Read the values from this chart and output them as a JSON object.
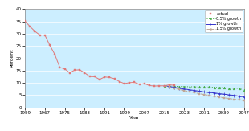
{
  "title": "",
  "ylabel": "Percent",
  "xlabel": "Year",
  "bg_color": "#cceeff",
  "ylim": [
    0,
    40
  ],
  "yticks": [
    0,
    5,
    10,
    15,
    20,
    25,
    30,
    35,
    40
  ],
  "xticks": [
    1959,
    1967,
    1975,
    1983,
    1991,
    1999,
    2007,
    2015,
    2023,
    2031,
    2039,
    2047
  ],
  "actual_years": [
    1959,
    1961,
    1963,
    1965,
    1967,
    1969,
    1971,
    1973,
    1975,
    1977,
    1979,
    1981,
    1983,
    1985,
    1987,
    1989,
    1991,
    1993,
    1995,
    1997,
    1999,
    2001,
    2003,
    2005,
    2007,
    2009,
    2011,
    2013,
    2015,
    2017,
    2019
  ],
  "actual_values": [
    35.2,
    33.0,
    31.0,
    29.5,
    29.5,
    25.3,
    21.6,
    16.3,
    15.7,
    14.1,
    15.2,
    15.3,
    14.1,
    12.6,
    12.5,
    11.4,
    12.4,
    12.2,
    11.7,
    10.5,
    9.7,
    10.1,
    10.2,
    9.4,
    9.7,
    8.9,
    8.7,
    8.8,
    8.8,
    9.2,
    9.0
  ],
  "proj_years": [
    2015,
    2017,
    2019,
    2021,
    2023,
    2025,
    2027,
    2029,
    2031,
    2033,
    2035,
    2037,
    2039,
    2041,
    2043,
    2045,
    2047
  ],
  "growth05_values": [
    8.8,
    8.7,
    8.6,
    8.5,
    8.5,
    8.4,
    8.4,
    8.3,
    8.3,
    8.3,
    8.2,
    8.1,
    8.0,
    7.9,
    7.8,
    7.7,
    7.0
  ],
  "growth1_values": [
    8.8,
    8.5,
    8.2,
    7.8,
    7.5,
    7.2,
    6.9,
    6.6,
    6.3,
    6.1,
    5.9,
    5.6,
    5.4,
    5.1,
    4.9,
    4.6,
    4.3
  ],
  "growth15_values": [
    8.8,
    8.3,
    7.8,
    7.3,
    6.8,
    6.4,
    6.0,
    5.6,
    5.2,
    4.9,
    4.5,
    4.2,
    3.9,
    3.6,
    3.3,
    3.1,
    2.8
  ],
  "actual_color": "#e07878",
  "growth05_color": "#44aa44",
  "growth1_color": "#3333cc",
  "growth15_color": "#c0a898",
  "legend_labels": [
    "actual",
    "0.5% growth",
    "1% growth",
    "1.5% growth"
  ]
}
